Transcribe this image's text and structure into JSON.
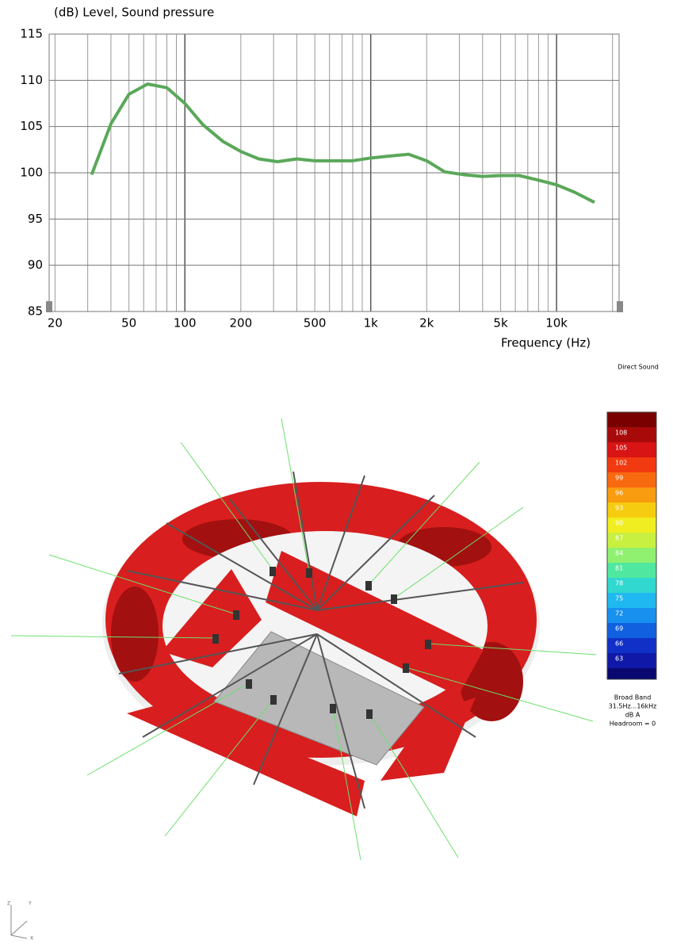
{
  "chart_data": {
    "type": "line",
    "title": "(dB)  Level, Sound pressure",
    "x_label": "Frequency  (Hz)",
    "xscale": "log",
    "xlim": [
      18.6,
      21700
    ],
    "ylim": [
      85,
      115
    ],
    "xticks": [
      20,
      50,
      100,
      200,
      500,
      {
        "value": 1000,
        "label": "1k"
      },
      {
        "value": 2000,
        "label": "2k"
      },
      {
        "value": 5000,
        "label": "5k"
      },
      {
        "value": 10000,
        "label": "10k"
      }
    ],
    "xgrid": [
      20,
      30,
      40,
      50,
      60,
      70,
      80,
      90,
      100,
      200,
      300,
      400,
      500,
      600,
      700,
      800,
      900,
      1000,
      2000,
      3000,
      4000,
      5000,
      6000,
      7000,
      8000,
      9000,
      10000,
      20000
    ],
    "yticks": [
      85,
      90,
      95,
      100,
      105,
      110,
      115
    ],
    "grid": true,
    "x": [
      31.5,
      40,
      50,
      63,
      80,
      100,
      125,
      160,
      200,
      250,
      315,
      400,
      500,
      630,
      800,
      1000,
      1250,
      1600,
      2000,
      2500,
      3150,
      4000,
      5000,
      6300,
      8000,
      10000,
      12500,
      16000
    ],
    "series": [
      {
        "color": "#5aa85a",
        "values": [
          99.8,
          105.3,
          108.5,
          109.6,
          109.2,
          107.5,
          105.2,
          103.4,
          102.3,
          101.5,
          101.2,
          101.5,
          101.3,
          101.3,
          101.3,
          101.6,
          101.8,
          102.0,
          101.3,
          100.1,
          99.8,
          99.6,
          99.7,
          99.7,
          99.2,
          98.7,
          97.9,
          96.8
        ]
      }
    ]
  },
  "map": {
    "title": "Direct Sound",
    "colorbar": {
      "labels": [
        "108",
        "105",
        "102",
        "99",
        "96",
        "93",
        "90",
        "87",
        "84",
        "81",
        "78",
        "75",
        "72",
        "69",
        "66",
        "63"
      ],
      "colors": [
        "#7a0000",
        "#a80a0a",
        "#d81414",
        "#f23a10",
        "#f86a10",
        "#f99c10",
        "#f6cc10",
        "#f0ee20",
        "#c8f040",
        "#90f070",
        "#50e8a0",
        "#30d8d0",
        "#20b8f0",
        "#1890f0",
        "#1060e0",
        "#1030c8",
        "#1018a8",
        "#080870"
      ]
    },
    "legend": [
      "Broad Band",
      "31.5Hz...16kHz",
      "dB A",
      "Headroom = 0"
    ],
    "axes": [
      "Z",
      "Y",
      "X"
    ]
  }
}
